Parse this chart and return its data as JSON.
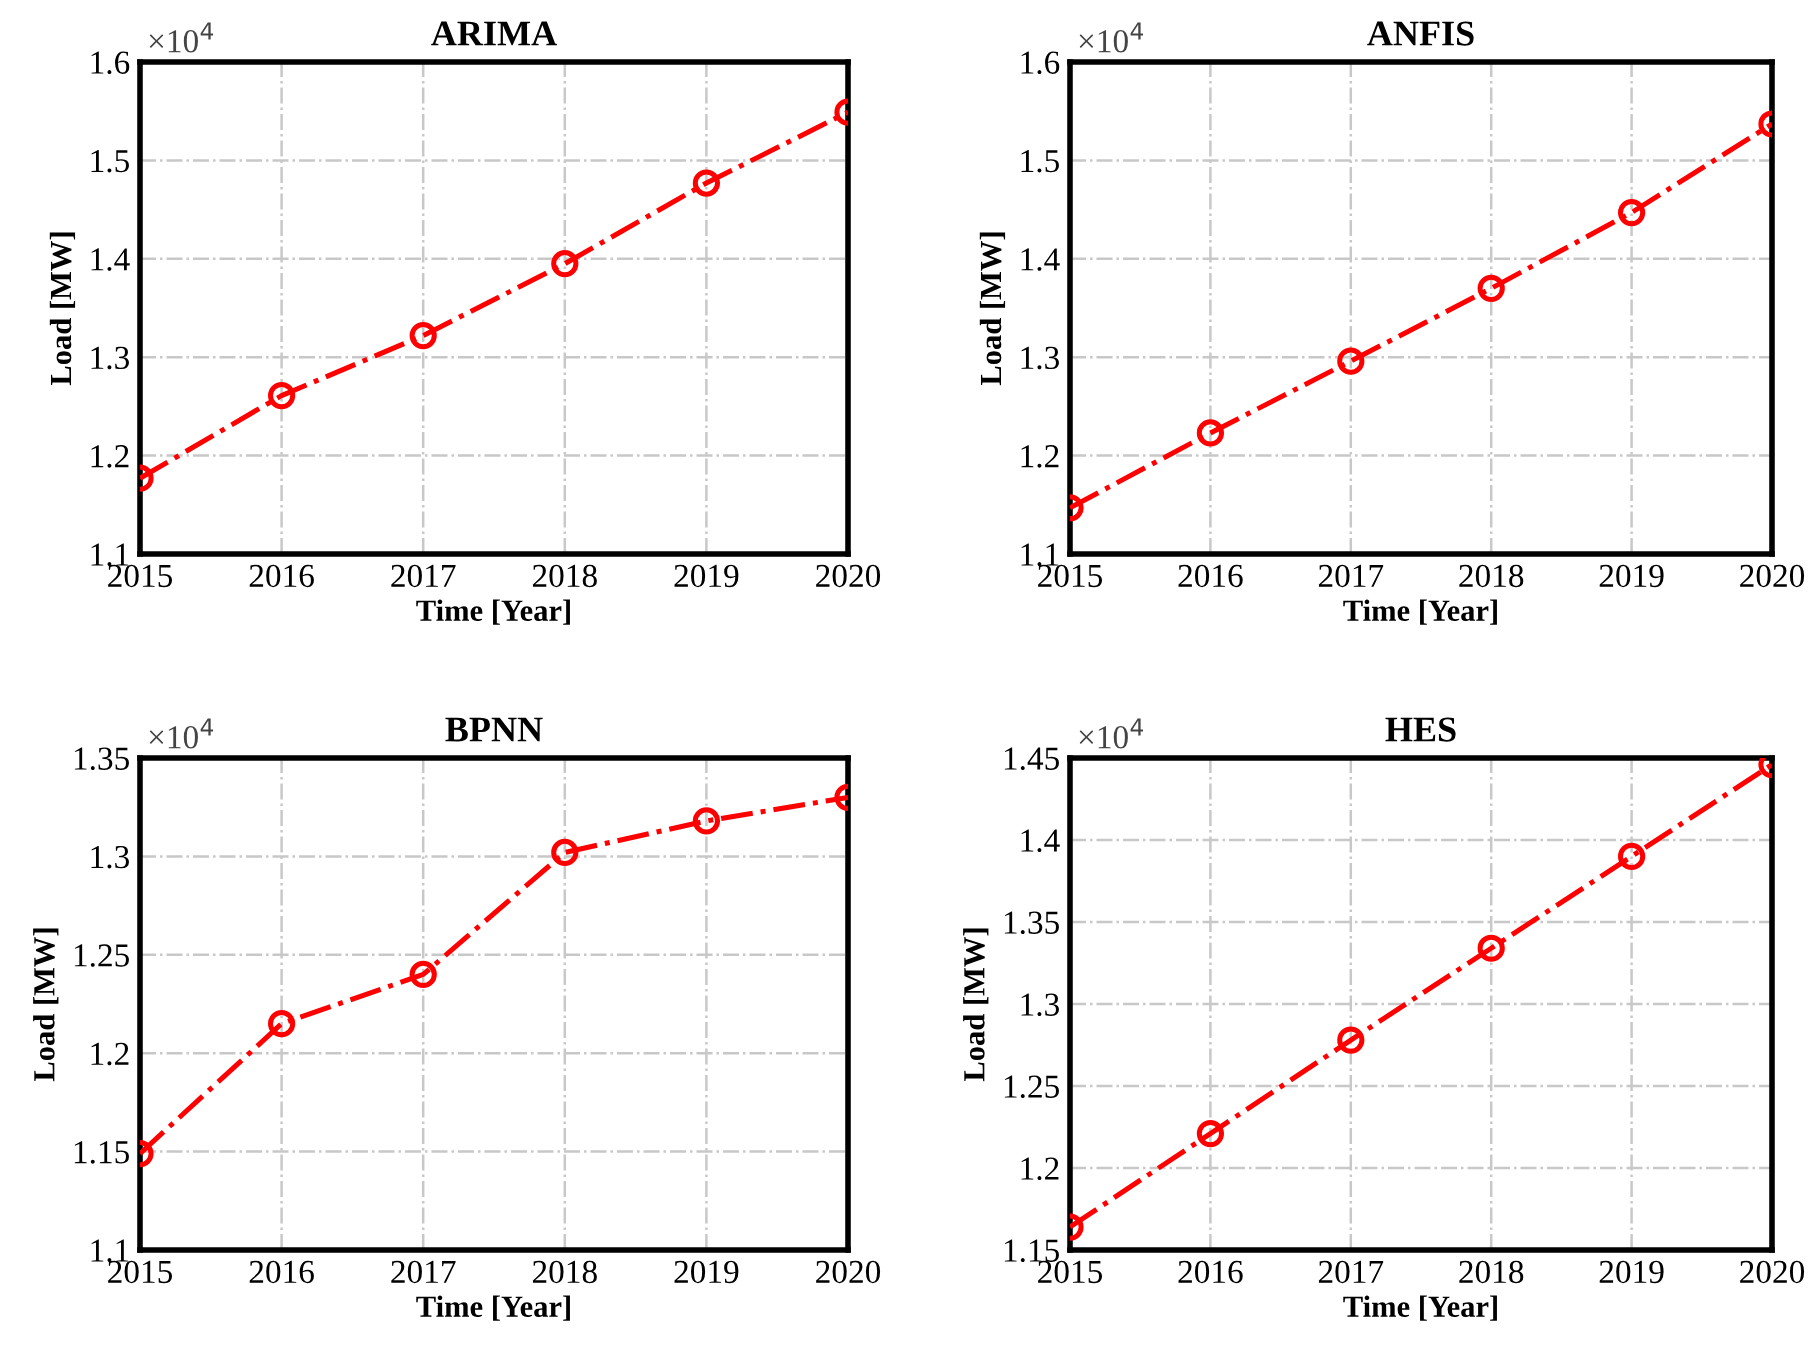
{
  "chart_data": [
    {
      "type": "line",
      "title": "ARIMA",
      "xlabel": "Time [Year]",
      "ylabel": "Load [MW]",
      "x": [
        2015,
        2016,
        2017,
        2018,
        2019,
        2020
      ],
      "series": [
        {
          "color": "#ff0000",
          "values": [
            1.177,
            1.261,
            1.322,
            1.395,
            1.477,
            1.549
          ]
        }
      ],
      "xlim": [
        2015,
        2020
      ],
      "xticks": [
        2015,
        2016,
        2017,
        2018,
        2019,
        2020
      ],
      "ylim": [
        1.1,
        1.6
      ],
      "yticks": [
        1.1,
        1.2,
        1.3,
        1.4,
        1.5,
        1.6
      ],
      "annotations": [
        "×10$^{4}$"
      ],
      "grid": true,
      "marker": "circle",
      "line_style": "dashdot"
    },
    {
      "type": "line",
      "title": "ANFIS",
      "xlabel": "Time [Year]",
      "ylabel": "Load [MW]",
      "x": [
        2015,
        2016,
        2017,
        2018,
        2019,
        2020
      ],
      "series": [
        {
          "color": "#ff0000",
          "values": [
            1.147,
            1.223,
            1.296,
            1.37,
            1.447,
            1.537
          ]
        }
      ],
      "xlim": [
        2015,
        2020
      ],
      "xticks": [
        2015,
        2016,
        2017,
        2018,
        2019,
        2020
      ],
      "ylim": [
        1.1,
        1.6
      ],
      "yticks": [
        1.1,
        1.2,
        1.3,
        1.4,
        1.5,
        1.6
      ],
      "annotations": [
        "×10$^{4}$"
      ],
      "grid": true,
      "marker": "circle",
      "line_style": "dashdot"
    },
    {
      "type": "line",
      "title": "BPNN",
      "xlabel": "Time [Year]",
      "ylabel": "Load [MW]",
      "x": [
        2015,
        2016,
        2017,
        2018,
        2019,
        2020
      ],
      "series": [
        {
          "color": "#ff0000",
          "values": [
            1.149,
            1.215,
            1.24,
            1.302,
            1.318,
            1.33
          ]
        }
      ],
      "xlim": [
        2015,
        2020
      ],
      "xticks": [
        2015,
        2016,
        2017,
        2018,
        2019,
        2020
      ],
      "ylim": [
        1.1,
        1.35
      ],
      "yticks": [
        1.1,
        1.15,
        1.2,
        1.25,
        1.3,
        1.35
      ],
      "annotations": [
        "×10$^{4}$"
      ],
      "grid": true,
      "marker": "circle",
      "line_style": "dashdot"
    },
    {
      "type": "line",
      "title": "HES",
      "xlabel": "Time [Year]",
      "ylabel": "Load [MW]",
      "x": [
        2015,
        2016,
        2017,
        2018,
        2019,
        2020
      ],
      "series": [
        {
          "color": "#ff0000",
          "values": [
            1.164,
            1.221,
            1.278,
            1.334,
            1.39,
            1.446
          ]
        }
      ],
      "xlim": [
        2015,
        2020
      ],
      "xticks": [
        2015,
        2016,
        2017,
        2018,
        2019,
        2020
      ],
      "ylim": [
        1.15,
        1.45
      ],
      "yticks": [
        1.15,
        1.2,
        1.25,
        1.3,
        1.35,
        1.4,
        1.45
      ],
      "annotations": [
        "×10$^{4}$"
      ],
      "grid": true,
      "marker": "circle",
      "line_style": "dashdot"
    }
  ]
}
